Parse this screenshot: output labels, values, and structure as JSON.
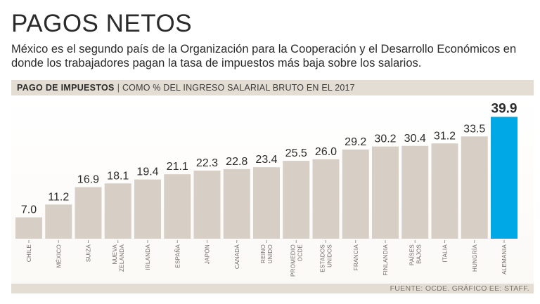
{
  "title": "PAGOS NETOS",
  "subtitle": "México es el segundo país de la Organización para la Cooperación y el Desarrollo Económicos en donde los trabajadores pagan la tasa de impuestos más baja sobre los salarios.",
  "header": {
    "bold": "PAGO DE IMPUESTOS",
    "separator": "|",
    "light": "COMO % DEL INGRESO SALARIAL BRUTO EN EL 2017"
  },
  "footer": {
    "source": "FUENTE: OCDE. GRÁFICO EE: STAFF."
  },
  "colors": {
    "bar": "#d7cfc6",
    "highlight": "#00a9e6",
    "header_bg": "#e4ddd3"
  },
  "chart_data": {
    "type": "bar",
    "title": "PAGO DE IMPUESTOS",
    "subtitle": "COMO % DEL INGRESO SALARIAL BRUTO EN EL 2017",
    "xlabel": "",
    "ylabel": "",
    "ylim": [
      0,
      45
    ],
    "grid": false,
    "categories": [
      [
        "CHILE"
      ],
      [
        "MÉXICO"
      ],
      [
        "SUIZA"
      ],
      [
        "NUEVA",
        "ZELANDA"
      ],
      [
        "IRLANDA"
      ],
      [
        "ESPAÑA"
      ],
      [
        "JAPÓN"
      ],
      [
        "CANADÁ"
      ],
      [
        "REINO",
        "UNIDO"
      ],
      [
        "PROMEDIO",
        "OCDE"
      ],
      [
        "ESTADOS",
        "UNIDOS"
      ],
      [
        "FRANCIA"
      ],
      [
        "FINLANDIA"
      ],
      [
        "PAÍSES",
        "BAJOS"
      ],
      [
        "ITALIA"
      ],
      [
        "HUNGRÍA"
      ],
      [
        "ALEMANIA"
      ]
    ],
    "value_labels": [
      "7.0",
      "11.2",
      "16.9",
      "18.1",
      "19.4",
      "21.1",
      "22.3",
      "22.8",
      "23.4",
      "25.5",
      "26.0",
      "29.2",
      "30.2",
      "30.4",
      "31.2",
      "33.5",
      "39.9"
    ],
    "values": [
      7.0,
      11.2,
      16.9,
      18.1,
      19.4,
      21.1,
      22.3,
      22.8,
      23.4,
      25.5,
      26.0,
      29.2,
      30.2,
      30.4,
      31.2,
      33.5,
      39.9
    ],
    "highlight": "ALEMANIA"
  }
}
